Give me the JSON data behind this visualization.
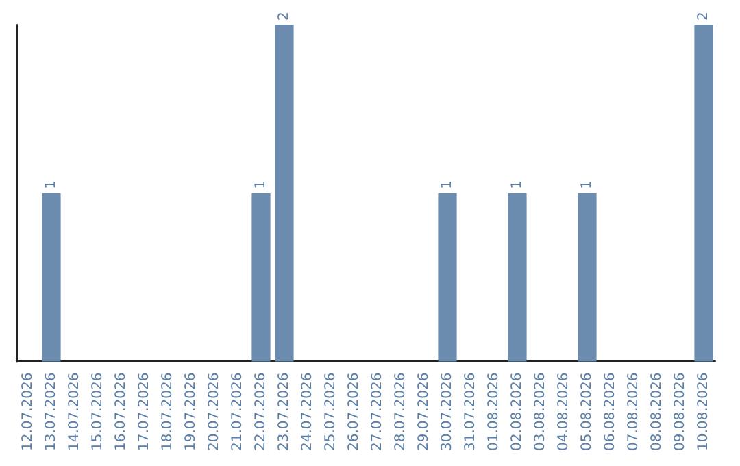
{
  "chart_data": {
    "type": "bar",
    "categories": [
      "12.07.2026",
      "13.07.2026",
      "14.07.2026",
      "15.07.2026",
      "16.07.2026",
      "17.07.2026",
      "18.07.2026",
      "19.07.2026",
      "20.07.2026",
      "21.07.2026",
      "22.07.2026",
      "23.07.2026",
      "24.07.2026",
      "25.07.2026",
      "26.07.2026",
      "27.07.2026",
      "28.07.2026",
      "29.07.2026",
      "30.07.2026",
      "31.07.2026",
      "01.08.2026",
      "02.08.2026",
      "03.08.2026",
      "04.08.2026",
      "05.08.2026",
      "06.08.2026",
      "07.08.2026",
      "08.08.2026",
      "09.08.2026",
      "10.08.2026"
    ],
    "values": [
      0,
      1,
      0,
      0,
      0,
      0,
      0,
      0,
      0,
      0,
      1,
      2,
      0,
      0,
      0,
      0,
      0,
      0,
      1,
      0,
      0,
      1,
      0,
      0,
      1,
      0,
      0,
      0,
      0,
      2
    ],
    "value_labels": [
      null,
      "1",
      null,
      null,
      null,
      null,
      null,
      null,
      null,
      null,
      "1",
      "2",
      null,
      null,
      null,
      null,
      null,
      null,
      "1",
      null,
      null,
      "1",
      null,
      null,
      "1",
      null,
      null,
      null,
      null,
      "2"
    ],
    "color": "#6b8cae",
    "tick_labels": "x"
  }
}
